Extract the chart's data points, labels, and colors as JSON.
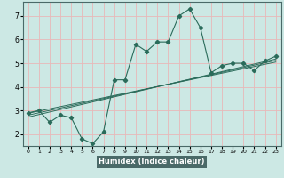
{
  "xlabel": "Humidex (Indice chaleur)",
  "bg_color": "#cce8e4",
  "plot_bg_color": "#cce8e4",
  "grid_color": "#e8b8b8",
  "line_color": "#2a6b5a",
  "xlabel_bg": "#4a6a68",
  "xlim": [
    -0.5,
    23.5
  ],
  "ylim": [
    1.5,
    7.6
  ],
  "xticks": [
    0,
    1,
    2,
    3,
    4,
    5,
    6,
    7,
    8,
    9,
    10,
    11,
    12,
    13,
    14,
    15,
    16,
    17,
    18,
    19,
    20,
    21,
    22,
    23
  ],
  "yticks": [
    2,
    3,
    4,
    5,
    6,
    7
  ],
  "scatter_x": [
    0,
    1,
    2,
    3,
    4,
    5,
    6,
    7,
    8,
    9,
    10,
    11,
    12,
    13,
    14,
    15,
    16,
    17,
    18,
    19,
    20,
    21,
    22,
    23
  ],
  "scatter_y": [
    2.9,
    3.0,
    2.5,
    2.8,
    2.7,
    1.8,
    1.6,
    2.1,
    4.3,
    4.3,
    5.8,
    5.5,
    5.9,
    5.9,
    7.0,
    7.3,
    6.5,
    4.6,
    4.9,
    5.0,
    5.0,
    4.7,
    5.1,
    5.3
  ],
  "trend_lines": [
    {
      "x": [
        0,
        23
      ],
      "y": [
        2.88,
        5.05
      ]
    },
    {
      "x": [
        0,
        23
      ],
      "y": [
        2.8,
        5.12
      ]
    },
    {
      "x": [
        0,
        23
      ],
      "y": [
        2.72,
        5.18
      ]
    }
  ]
}
